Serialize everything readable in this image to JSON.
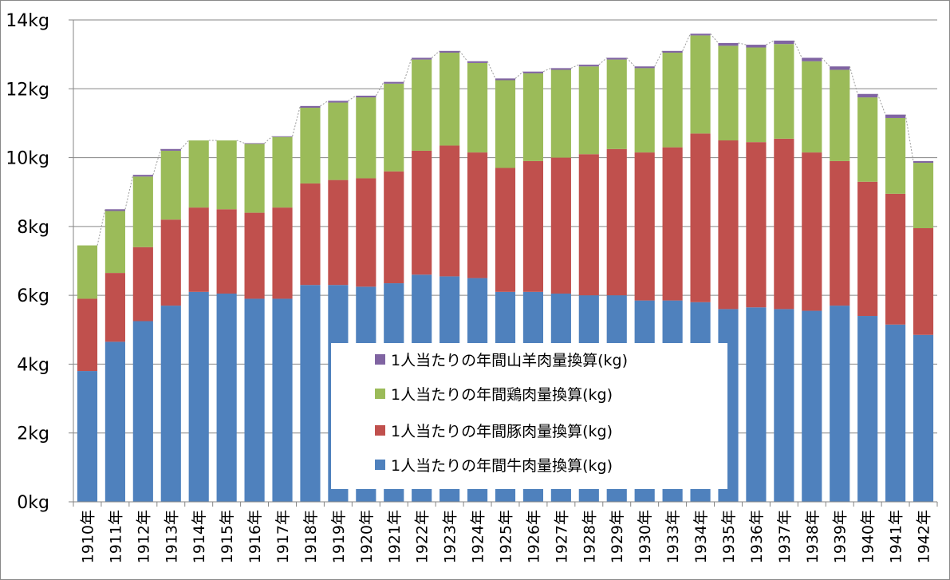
{
  "chart_data": {
    "type": "bar",
    "stacked": true,
    "categories": [
      "1910年",
      "1911年",
      "1912年",
      "1913年",
      "1914年",
      "1915年",
      "1916年",
      "1917年",
      "1918年",
      "1919年",
      "1920年",
      "1921年",
      "1922年",
      "1923年",
      "1924年",
      "1925年",
      "1926年",
      "1927年",
      "1928年",
      "1929年",
      "1930年",
      "1933年",
      "1934年",
      "1935年",
      "1936年",
      "1937年",
      "1938年",
      "1939年",
      "1940年",
      "1941年",
      "1942年"
    ],
    "series": [
      {
        "name": "1人当たりの年間牛肉量換算(kg)",
        "color": "#4F81BD",
        "values": [
          3.8,
          4.65,
          5.25,
          5.7,
          6.1,
          6.05,
          5.9,
          5.9,
          6.3,
          6.3,
          6.25,
          6.35,
          6.6,
          6.55,
          6.5,
          6.1,
          6.1,
          6.05,
          6.0,
          6.0,
          5.85,
          5.85,
          5.8,
          5.6,
          5.65,
          5.6,
          5.55,
          5.7,
          5.4,
          5.15,
          4.85
        ]
      },
      {
        "name": "1人当たりの年間豚肉量換算(kg)",
        "color": "#C0504D",
        "values": [
          2.1,
          2.0,
          2.15,
          2.5,
          2.45,
          2.45,
          2.5,
          2.65,
          2.95,
          3.05,
          3.15,
          3.25,
          3.6,
          3.8,
          3.65,
          3.6,
          3.8,
          3.95,
          4.1,
          4.25,
          4.3,
          4.45,
          4.9,
          4.9,
          4.8,
          4.95,
          4.6,
          4.2,
          3.9,
          3.8,
          3.1
        ]
      },
      {
        "name": "1人当たりの年間鶏肉量換算(kg)",
        "color": "#9BBB59",
        "values": [
          1.55,
          1.8,
          2.05,
          2.0,
          1.95,
          2.0,
          2.0,
          2.05,
          2.2,
          2.25,
          2.35,
          2.55,
          2.65,
          2.7,
          2.6,
          2.55,
          2.55,
          2.55,
          2.55,
          2.6,
          2.45,
          2.75,
          2.85,
          2.75,
          2.75,
          2.75,
          2.65,
          2.65,
          2.45,
          2.2,
          1.9
        ]
      },
      {
        "name": "1人当たりの年間山羊肉量換算(kg)",
        "color": "#8064A2",
        "values": [
          0.0,
          0.05,
          0.05,
          0.05,
          0.0,
          0.0,
          0.02,
          0.02,
          0.05,
          0.05,
          0.05,
          0.05,
          0.05,
          0.05,
          0.05,
          0.05,
          0.05,
          0.05,
          0.05,
          0.05,
          0.05,
          0.05,
          0.05,
          0.08,
          0.08,
          0.1,
          0.1,
          0.1,
          0.1,
          0.1,
          0.05
        ]
      }
    ],
    "ylim": [
      0,
      14
    ],
    "y_ticks": [
      0,
      2,
      4,
      6,
      8,
      10,
      12,
      14
    ],
    "y_tick_labels": [
      "0kg",
      "2kg",
      "4kg",
      "6kg",
      "8kg",
      "10kg",
      "12kg",
      "14kg"
    ],
    "grid": true,
    "total_line": true,
    "legend_order": [
      "1人当たりの年間山羊肉量換算(kg)",
      "1人当たりの年間鶏肉量換算(kg)",
      "1人当たりの年間豚肉量換算(kg)",
      "1人当たりの年間牛肉量換算(kg)"
    ],
    "legend_position": "center-overlay"
  }
}
